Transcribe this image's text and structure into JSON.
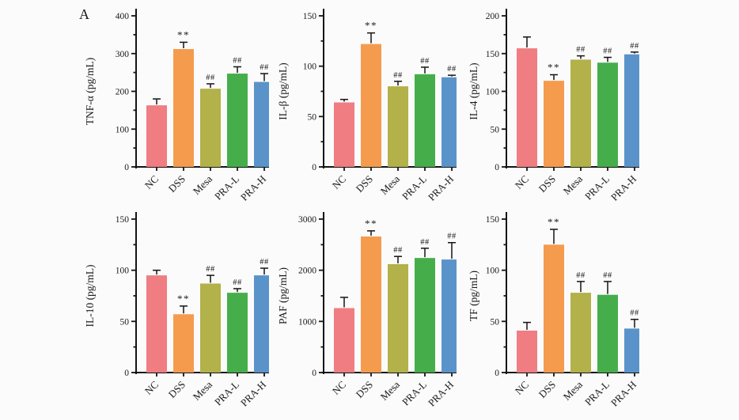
{
  "panel_label": "A",
  "groups": [
    "NC",
    "DSS",
    "Mesa",
    "PRA-L",
    "PRA-H"
  ],
  "bar_colors": [
    "#ef7d82",
    "#f59b4e",
    "#b2b14a",
    "#45ae4b",
    "#5a93c9"
  ],
  "axis_color": "#141414",
  "background": "#fbfbfb",
  "significance_legend": {
    "vs_nc": "**",
    "vs_dss": "##"
  },
  "chart_data": [
    {
      "type": "bar",
      "ylabel": "TNF-α (pg/mL)",
      "categories": [
        "NC",
        "DSS",
        "Mesa",
        "PRA-L",
        "PRA-H"
      ],
      "values": [
        163,
        312,
        207,
        247,
        225
      ],
      "errors": [
        17,
        18,
        13,
        18,
        22
      ],
      "annotations": [
        "",
        "**",
        "##",
        "##",
        "##"
      ],
      "ylim": [
        0,
        400
      ],
      "ytick_step": 100,
      "minor_ticks_between": 1,
      "xlabel": "",
      "title": ""
    },
    {
      "type": "bar",
      "ylabel": "IL-β (pg/mL)",
      "categories": [
        "NC",
        "DSS",
        "Mesa",
        "PRA-L",
        "PRA-H"
      ],
      "values": [
        64,
        122,
        80,
        92,
        89
      ],
      "errors": [
        3,
        11,
        5,
        7,
        2
      ],
      "annotations": [
        "",
        "**",
        "##",
        "##",
        "##"
      ],
      "ylim": [
        0,
        150
      ],
      "ytick_step": 50,
      "minor_ticks_between": 1,
      "xlabel": "",
      "title": ""
    },
    {
      "type": "bar",
      "ylabel": "IL-4 (pg/mL)",
      "categories": [
        "NC",
        "DSS",
        "Mesa",
        "PRA-L",
        "PRA-H"
      ],
      "values": [
        157,
        114,
        142,
        138,
        149
      ],
      "errors": [
        15,
        8,
        5,
        7,
        3
      ],
      "annotations": [
        "",
        "**",
        "##",
        "##",
        "##"
      ],
      "ylim": [
        0,
        200
      ],
      "ytick_step": 50,
      "minor_ticks_between": 1,
      "xlabel": "",
      "title": ""
    },
    {
      "type": "bar",
      "ylabel": "IL-10 (pg/mL)",
      "categories": [
        "NC",
        "DSS",
        "Mesa",
        "PRA-L",
        "PRA-H"
      ],
      "values": [
        95,
        57,
        87,
        78,
        95
      ],
      "errors": [
        5,
        8,
        8,
        4,
        7
      ],
      "annotations": [
        "",
        "**",
        "##",
        "##",
        "##"
      ],
      "ylim": [
        0,
        150
      ],
      "ytick_step": 50,
      "minor_ticks_between": 1,
      "xlabel": "",
      "title": ""
    },
    {
      "type": "bar",
      "ylabel": "PAF (pg/mL)",
      "categories": [
        "NC",
        "DSS",
        "Mesa",
        "PRA-L",
        "PRA-H"
      ],
      "values": [
        1260,
        2660,
        2120,
        2240,
        2210
      ],
      "errors": [
        210,
        110,
        150,
        190,
        330
      ],
      "annotations": [
        "",
        "**",
        "##",
        "##",
        "##"
      ],
      "ylim": [
        0,
        3000
      ],
      "ytick_step": 1000,
      "minor_ticks_between": 1,
      "xlabel": "",
      "title": ""
    },
    {
      "type": "bar",
      "ylabel": "TF (pg/mL)",
      "categories": [
        "NC",
        "DSS",
        "Mesa",
        "PRA-L",
        "PRA-H"
      ],
      "values": [
        41,
        125,
        78,
        76,
        43
      ],
      "errors": [
        8,
        15,
        11,
        13,
        9
      ],
      "annotations": [
        "",
        "**",
        "##",
        "##",
        "##"
      ],
      "ylim": [
        0,
        150
      ],
      "ytick_step": 50,
      "minor_ticks_between": 1,
      "xlabel": "",
      "title": ""
    }
  ]
}
